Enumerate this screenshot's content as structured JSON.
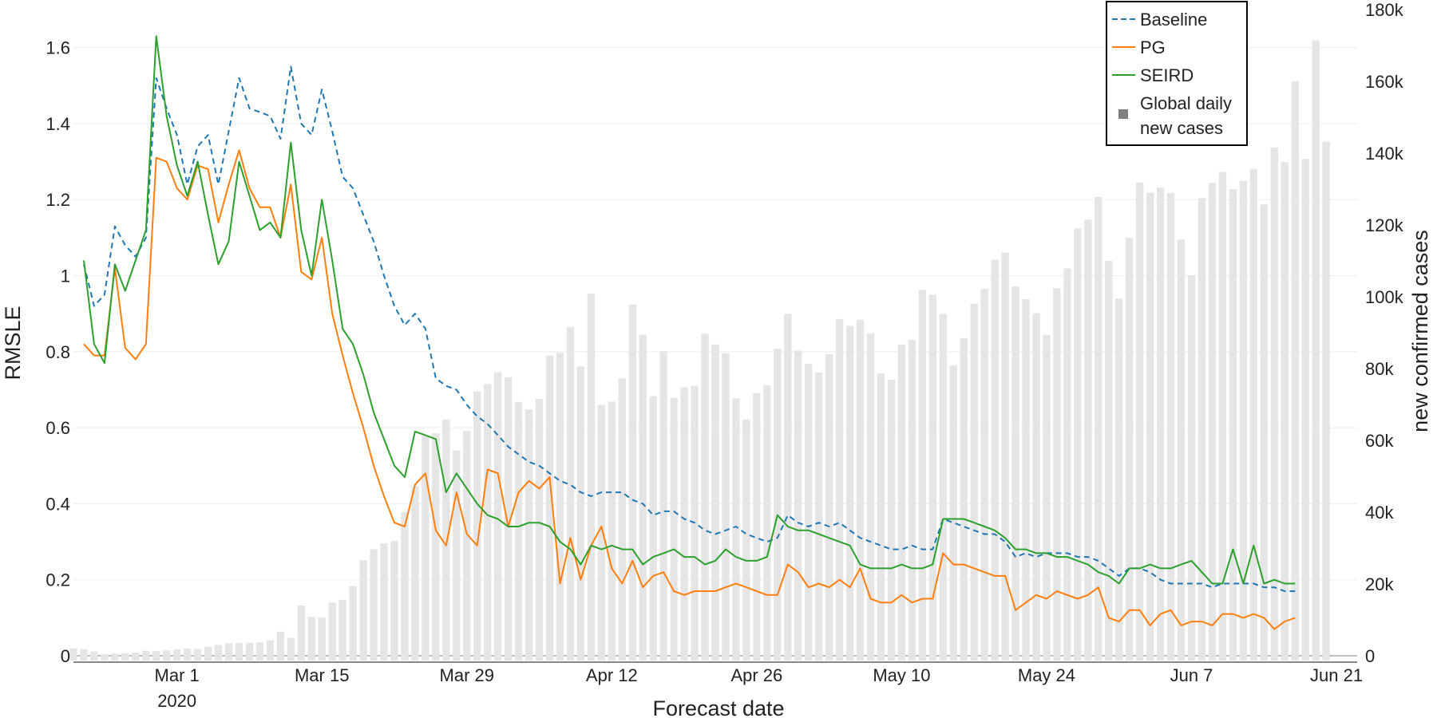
{
  "chart_data": {
    "type": "line",
    "title": "",
    "xlabel": "Forecast date",
    "ylabel": "RMSLE",
    "y2label": "new confirmed cases",
    "ylim": [
      0,
      1.7
    ],
    "y2lim": [
      0,
      180000
    ],
    "y_ticks": [
      {
        "value": 0,
        "label": "0"
      },
      {
        "value": 0.2,
        "label": "0.2"
      },
      {
        "value": 0.4,
        "label": "0.4"
      },
      {
        "value": 0.6,
        "label": "0.6"
      },
      {
        "value": 0.8,
        "label": "0.8"
      },
      {
        "value": 1.0,
        "label": "1"
      },
      {
        "value": 1.2,
        "label": "1.2"
      },
      {
        "value": 1.4,
        "label": "1.4"
      },
      {
        "value": 1.6,
        "label": "1.6"
      }
    ],
    "y2_ticks": [
      {
        "value": 0,
        "label": "0"
      },
      {
        "value": 20000,
        "label": "20k"
      },
      {
        "value": 40000,
        "label": "40k"
      },
      {
        "value": 60000,
        "label": "60k"
      },
      {
        "value": 80000,
        "label": "80k"
      },
      {
        "value": 100000,
        "label": "100k"
      },
      {
        "value": 120000,
        "label": "120k"
      },
      {
        "value": 140000,
        "label": "140k"
      },
      {
        "value": 160000,
        "label": "160k"
      },
      {
        "value": 180000,
        "label": "180k"
      }
    ],
    "x_ticks": [
      {
        "date": "2020-03-01",
        "label": "Mar 1",
        "sublabel": "2020"
      },
      {
        "date": "2020-03-15",
        "label": "Mar 15",
        "sublabel": ""
      },
      {
        "date": "2020-03-29",
        "label": "Mar 29",
        "sublabel": ""
      },
      {
        "date": "2020-04-12",
        "label": "Apr 12",
        "sublabel": ""
      },
      {
        "date": "2020-04-26",
        "label": "Apr 26",
        "sublabel": ""
      },
      {
        "date": "2020-05-10",
        "label": "May 10",
        "sublabel": ""
      },
      {
        "date": "2020-05-24",
        "label": "May 24",
        "sublabel": ""
      },
      {
        "date": "2020-06-07",
        "label": "Jun 7",
        "sublabel": ""
      },
      {
        "date": "2020-06-21",
        "label": "Jun 21",
        "sublabel": ""
      }
    ],
    "x_range": [
      "2020-02-20",
      "2020-06-23"
    ],
    "grid": true,
    "legend_position": "top-right",
    "series": [
      {
        "name": "Baseline",
        "color": "#1f77b4",
        "dash": "dashed",
        "start": "2020-02-21",
        "values": [
          1.03,
          0.92,
          0.95,
          1.13,
          1.08,
          1.05,
          1.1,
          1.52,
          1.44,
          1.37,
          1.24,
          1.34,
          1.37,
          1.24,
          1.38,
          1.52,
          1.44,
          1.43,
          1.42,
          1.36,
          1.55,
          1.4,
          1.37,
          1.49,
          1.38,
          1.26,
          1.23,
          1.16,
          1.09,
          1.0,
          0.92,
          0.87,
          0.9,
          0.86,
          0.73,
          0.71,
          0.7,
          0.66,
          0.63,
          0.61,
          0.58,
          0.55,
          0.53,
          0.51,
          0.5,
          0.48,
          0.46,
          0.45,
          0.43,
          0.42,
          0.43,
          0.43,
          0.43,
          0.41,
          0.4,
          0.37,
          0.38,
          0.38,
          0.36,
          0.35,
          0.33,
          0.32,
          0.33,
          0.34,
          0.32,
          0.31,
          0.3,
          0.31,
          0.37,
          0.35,
          0.34,
          0.35,
          0.34,
          0.35,
          0.33,
          0.31,
          0.3,
          0.29,
          0.28,
          0.28,
          0.29,
          0.28,
          0.28,
          0.36,
          0.35,
          0.34,
          0.33,
          0.32,
          0.32,
          0.3,
          0.26,
          0.27,
          0.26,
          0.27,
          0.27,
          0.27,
          0.26,
          0.26,
          0.25,
          0.23,
          0.21,
          0.23,
          0.23,
          0.22,
          0.2,
          0.19,
          0.19,
          0.19,
          0.19,
          0.18,
          0.19,
          0.19,
          0.19,
          0.19,
          0.18,
          0.18,
          0.17,
          0.17
        ]
      },
      {
        "name": "PG",
        "color": "#ff7f0e",
        "dash": "solid",
        "start": "2020-02-21",
        "values": [
          0.82,
          0.79,
          0.79,
          1.02,
          0.81,
          0.78,
          0.82,
          1.31,
          1.3,
          1.23,
          1.2,
          1.29,
          1.28,
          1.14,
          1.24,
          1.33,
          1.23,
          1.18,
          1.18,
          1.1,
          1.24,
          1.01,
          0.99,
          1.1,
          0.9,
          0.79,
          0.69,
          0.6,
          0.5,
          0.42,
          0.35,
          0.34,
          0.45,
          0.48,
          0.33,
          0.29,
          0.43,
          0.32,
          0.29,
          0.49,
          0.48,
          0.34,
          0.43,
          0.46,
          0.44,
          0.47,
          0.19,
          0.31,
          0.2,
          0.29,
          0.34,
          0.23,
          0.19,
          0.25,
          0.18,
          0.21,
          0.22,
          0.17,
          0.16,
          0.17,
          0.17,
          0.17,
          0.18,
          0.19,
          0.18,
          0.17,
          0.16,
          0.16,
          0.24,
          0.22,
          0.18,
          0.19,
          0.18,
          0.2,
          0.18,
          0.23,
          0.15,
          0.14,
          0.14,
          0.16,
          0.14,
          0.15,
          0.15,
          0.27,
          0.24,
          0.24,
          0.23,
          0.22,
          0.21,
          0.21,
          0.12,
          0.14,
          0.16,
          0.15,
          0.17,
          0.16,
          0.15,
          0.16,
          0.18,
          0.1,
          0.09,
          0.12,
          0.12,
          0.08,
          0.11,
          0.12,
          0.08,
          0.09,
          0.09,
          0.08,
          0.11,
          0.11,
          0.1,
          0.11,
          0.1,
          0.07,
          0.09,
          0.1
        ]
      },
      {
        "name": "SEIRD",
        "color": "#2ca02c",
        "dash": "solid",
        "start": "2020-02-21",
        "values": [
          1.04,
          0.82,
          0.77,
          1.03,
          0.96,
          1.04,
          1.12,
          1.63,
          1.42,
          1.29,
          1.21,
          1.3,
          1.16,
          1.03,
          1.09,
          1.3,
          1.21,
          1.12,
          1.14,
          1.1,
          1.35,
          1.12,
          1.0,
          1.2,
          1.04,
          0.86,
          0.82,
          0.74,
          0.64,
          0.57,
          0.5,
          0.47,
          0.59,
          0.58,
          0.57,
          0.43,
          0.48,
          0.44,
          0.4,
          0.37,
          0.36,
          0.34,
          0.34,
          0.35,
          0.35,
          0.34,
          0.3,
          0.28,
          0.24,
          0.29,
          0.28,
          0.29,
          0.28,
          0.28,
          0.24,
          0.26,
          0.27,
          0.28,
          0.26,
          0.26,
          0.24,
          0.25,
          0.28,
          0.26,
          0.25,
          0.25,
          0.26,
          0.37,
          0.34,
          0.33,
          0.33,
          0.32,
          0.31,
          0.3,
          0.29,
          0.24,
          0.23,
          0.23,
          0.23,
          0.24,
          0.23,
          0.23,
          0.24,
          0.36,
          0.36,
          0.36,
          0.35,
          0.34,
          0.33,
          0.31,
          0.28,
          0.28,
          0.27,
          0.27,
          0.26,
          0.26,
          0.25,
          0.24,
          0.22,
          0.21,
          0.19,
          0.23,
          0.23,
          0.24,
          0.23,
          0.23,
          0.24,
          0.25,
          0.22,
          0.19,
          0.19,
          0.28,
          0.19,
          0.29,
          0.19,
          0.2,
          0.19,
          0.19
        ]
      }
    ],
    "bars": {
      "name": "Global daily new cases",
      "color": "#e5e5e5",
      "axis": "y2",
      "start": "2020-02-20",
      "values": [
        2000,
        1800,
        1200,
        500,
        600,
        700,
        900,
        1400,
        1300,
        1500,
        1800,
        2000,
        1900,
        2500,
        3000,
        3500,
        3600,
        3600,
        3700,
        4300,
        6700,
        5000,
        14000,
        10800,
        10600,
        14800,
        15600,
        19400,
        26600,
        29700,
        31300,
        32000,
        40000,
        47200,
        61300,
        62000,
        65800,
        57200,
        62600,
        73600,
        75700,
        79000,
        77600,
        70700,
        68600,
        71600,
        83600,
        84400,
        91600,
        80600,
        100900,
        69900,
        70800,
        77300,
        97800,
        89400,
        72300,
        84900,
        71800,
        74800,
        75200,
        89700,
        86700,
        84300,
        71700,
        65800,
        73100,
        75400,
        85500,
        95300,
        85000,
        81300,
        78900,
        84000,
        93800,
        91900,
        93600,
        89800,
        78600,
        76900,
        86700,
        88000,
        101900,
        100600,
        95200,
        80900,
        88500,
        98000,
        102200,
        110300,
        112300,
        102900,
        99300,
        95400,
        89400,
        102400,
        107900,
        119000,
        121500,
        127800,
        110000,
        99500,
        116400,
        131800,
        129000,
        130400,
        128900,
        115900,
        106000,
        127500,
        131700,
        134800,
        130000,
        132300,
        135600,
        125700,
        141600,
        137500,
        160000,
        138400,
        171400,
        143200
      ]
    }
  }
}
